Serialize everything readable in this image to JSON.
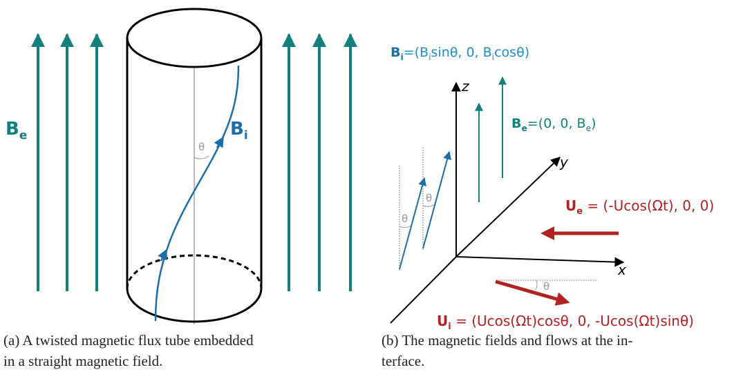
{
  "left": {
    "field_external": [
      "B",
      "e"
    ],
    "field_internal": [
      "B",
      "i"
    ],
    "angle": "θ"
  },
  "right": {
    "internal_field": [
      "B",
      "i",
      "=(B",
      "i",
      "sinθ, 0, B",
      "i",
      "cosθ)"
    ],
    "external_field": [
      "B",
      "e",
      "=(0, 0, B",
      "e",
      ")"
    ],
    "axes": {
      "x": "x",
      "y": "y",
      "z": "z"
    },
    "angles": [
      "θ",
      "θ",
      "θ"
    ],
    "external_flow": [
      "U",
      "e",
      " = (-Ucos(Ωt), 0, 0)"
    ],
    "internal_flow": [
      "U",
      "i",
      " = (Ucos(Ωt)cosθ, 0, -Ucos(Ωt)sinθ)"
    ]
  },
  "captions": {
    "a": [
      "(a) A twisted magnetic flux tube embedded",
      "in a straight magnetic field."
    ],
    "b": [
      "(b) The magnetic fields and flows at the in-",
      "terface."
    ]
  }
}
